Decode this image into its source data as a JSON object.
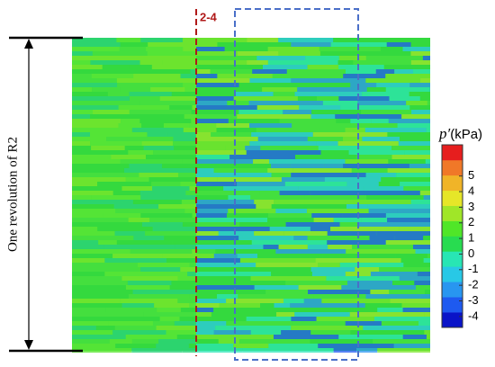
{
  "chart_data": {
    "type": "contour",
    "marker_label": "2-4",
    "ylabel": "One revolution of R2",
    "colorbar": {
      "symbol": "p′",
      "unit": "(kPa)",
      "ticks": [
        5,
        4,
        3,
        2,
        1,
        0,
        -1,
        -2,
        -3,
        -4
      ],
      "lim": [
        -4.7,
        7
      ],
      "colors": [
        "#0a14c8",
        "#1e5af0",
        "#2896f0",
        "#28c8e6",
        "#28e6b4",
        "#28dc50",
        "#50e628",
        "#a0e628",
        "#e6e628",
        "#f0b428",
        "#f07828",
        "#e61e1e"
      ]
    }
  }
}
